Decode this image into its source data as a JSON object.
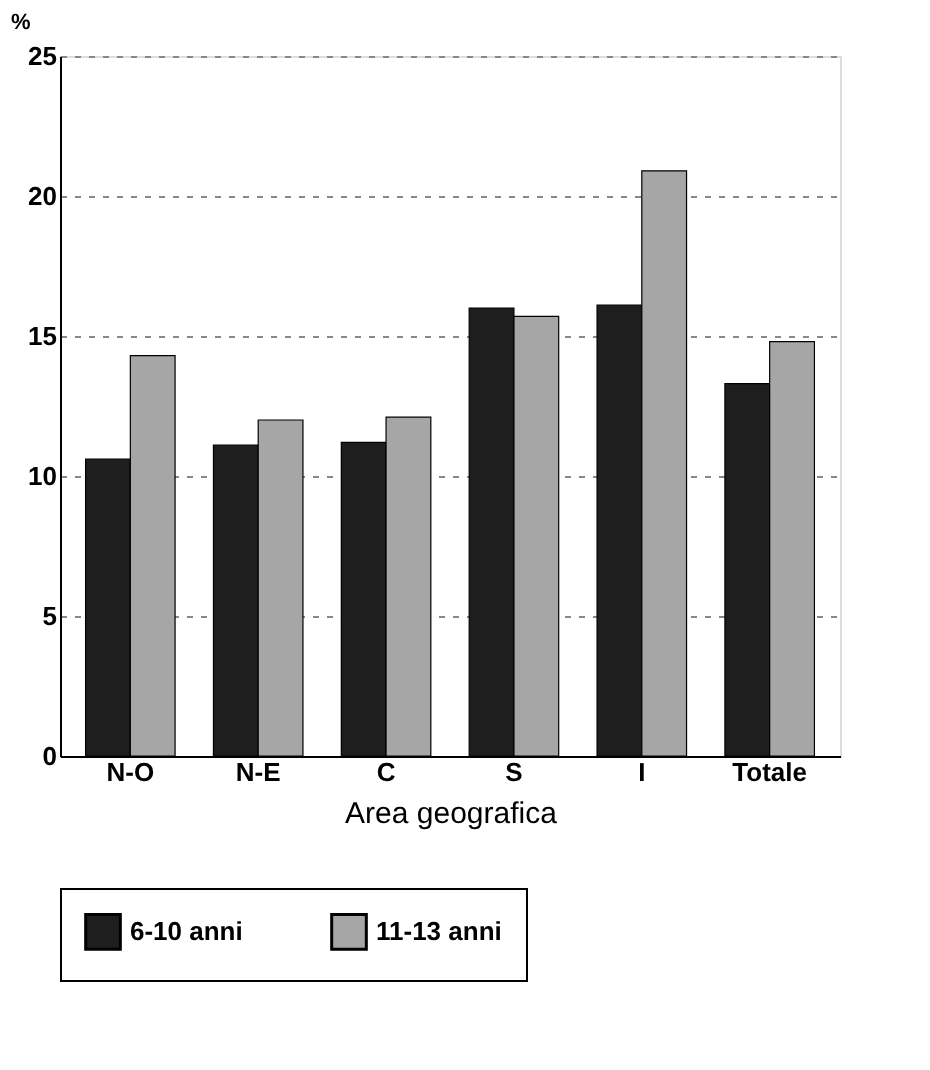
{
  "chart_data": {
    "type": "bar",
    "ylabel": "%",
    "xlabel": "Area geografica",
    "categories": [
      "N-O",
      "N-E",
      "C",
      "S",
      "I",
      "Totale"
    ],
    "series": [
      {
        "name": "6-10 anni",
        "color": "#1e1e1e",
        "values": [
          10.6,
          11.1,
          11.2,
          16.0,
          16.1,
          13.3
        ]
      },
      {
        "name": "11-13 anni",
        "color": "#a6a6a6",
        "values": [
          14.3,
          12.0,
          12.1,
          15.7,
          20.9,
          14.8
        ]
      }
    ],
    "ylim": [
      0,
      25
    ],
    "yticks": [
      0,
      5,
      10,
      15,
      20,
      25
    ],
    "grid": "y",
    "legend": "bottom"
  }
}
